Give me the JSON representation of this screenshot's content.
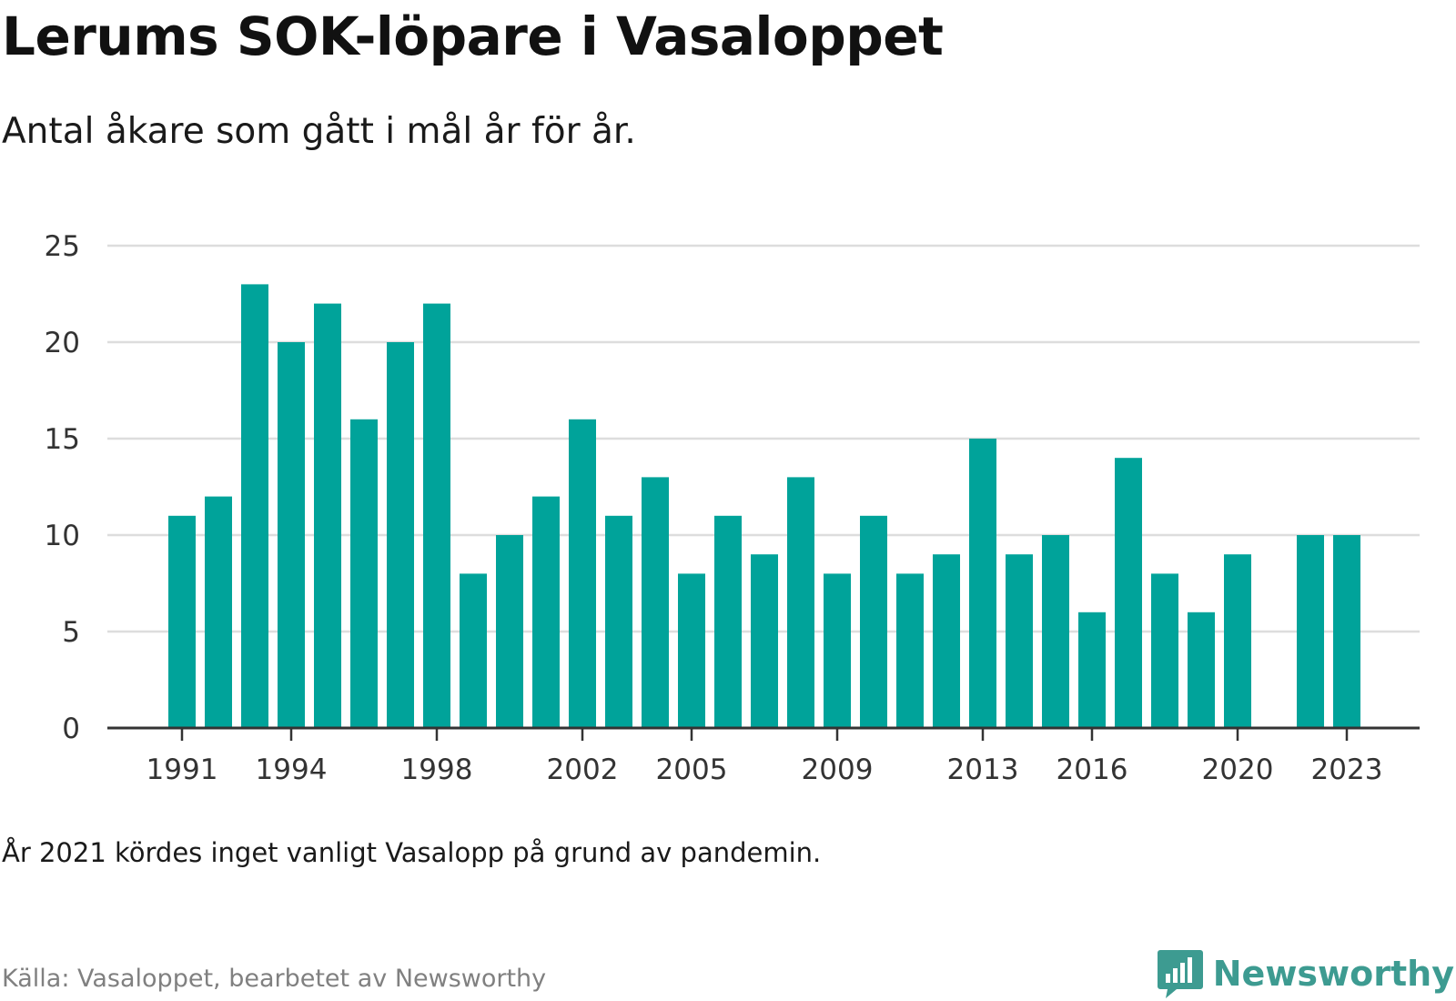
{
  "header": {
    "title": "Lerums SOK-löpare i Vasaloppet",
    "subtitle": "Antal åkare som gått i mål år för år."
  },
  "footer": {
    "note": "År 2021 kördes inget vanligt Vasalopp på grund av pandemin.",
    "source": "Källa: Vasaloppet, bearbetet av Newsworthy",
    "brand_name": "Newsworthy",
    "brand_icon": "bar-chart-speech-bubble-icon"
  },
  "colors": {
    "bar": "#00a39a",
    "grid": "#dddddd",
    "axis": "#333333",
    "brand": "#3d9b91"
  },
  "chart_data": {
    "type": "bar",
    "title": "Lerums SOK-löpare i Vasaloppet",
    "subtitle": "Antal åkare som gått i mål år för år.",
    "xlabel": "",
    "ylabel": "",
    "ylim": [
      0,
      25
    ],
    "yticks": [
      0,
      5,
      10,
      15,
      20,
      25
    ],
    "xticks": [
      1991,
      1994,
      1998,
      2002,
      2005,
      2009,
      2013,
      2016,
      2020,
      2023
    ],
    "grid": true,
    "legend": "none",
    "x": [
      1991,
      1992,
      1993,
      1994,
      1995,
      1996,
      1997,
      1998,
      1999,
      2000,
      2001,
      2002,
      2003,
      2004,
      2005,
      2006,
      2007,
      2008,
      2009,
      2010,
      2011,
      2012,
      2013,
      2014,
      2015,
      2016,
      2017,
      2018,
      2019,
      2020,
      2021,
      2022,
      2023
    ],
    "values": [
      11,
      12,
      23,
      20,
      22,
      16,
      20,
      22,
      8,
      10,
      12,
      16,
      11,
      13,
      8,
      11,
      9,
      13,
      8,
      11,
      8,
      9,
      15,
      9,
      10,
      6,
      14,
      8,
      6,
      9,
      null,
      10,
      10
    ]
  }
}
